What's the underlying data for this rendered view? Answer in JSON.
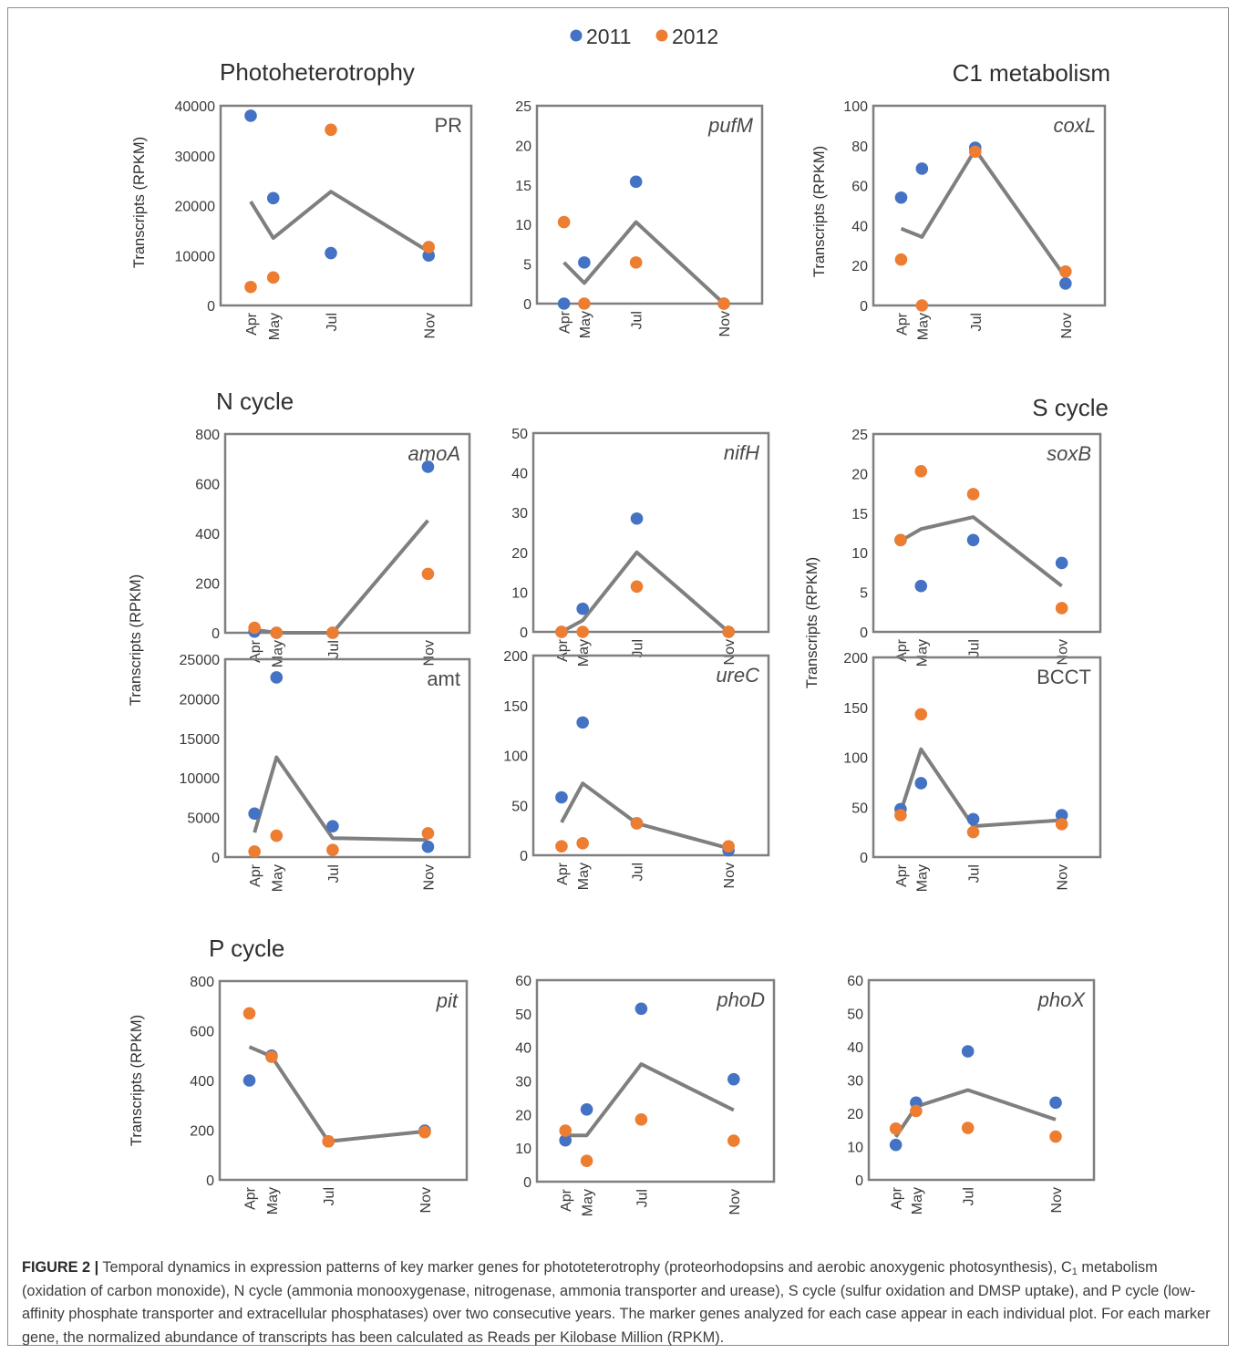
{
  "colors": {
    "y2011": "#4472C4",
    "y2012": "#ED7D31",
    "mean_line": "#7f7f7f"
  },
  "legend": [
    {
      "label": "2011",
      "color": "#4472C4"
    },
    {
      "label": "2012",
      "color": "#ED7D31"
    }
  ],
  "group_titles": [
    {
      "id": "photo",
      "text": "Photoheterotrophy"
    },
    {
      "id": "c1",
      "text": "C1 metabolism"
    },
    {
      "id": "n",
      "text": "N cycle"
    },
    {
      "id": "s",
      "text": "S cycle"
    },
    {
      "id": "p",
      "text": "P cycle"
    }
  ],
  "y_axis_label": "Transcripts (RPKM)",
  "caption": {
    "label": "FIGURE 2 |",
    "text_before_sub": " Temporal dynamics in expression patterns of key marker genes for phototeterotrophy (proteorhodopsins and aerobic anoxygenic photosynthesis), C",
    "sub": "1",
    "text_after_sub": " metabolism (oxidation of carbon monoxide), N cycle (ammonia monooxygenase, nitrogenase, ammonia transporter and urease), S cycle (sulfur oxidation and DMSP uptake), and P cycle (low-affinity phosphate transporter and extracellular phosphatases) over two consecutive years. The marker genes analyzed for each case appear in each individual plot. For each marker gene, the normalized abundance of transcripts has been calculated as Reads per Kilobase Million (RPKM)."
  },
  "chart_data": [
    {
      "type": "scatter",
      "gene": "PR",
      "italic": false,
      "months": [
        "Apr",
        "May",
        "Jul",
        "Nov"
      ],
      "ylim": [
        0,
        40000
      ],
      "yticks": [
        0,
        10000,
        20000,
        30000,
        40000
      ],
      "series": [
        {
          "name": "2011",
          "values": [
            38000,
            21500,
            10500,
            10000
          ]
        },
        {
          "name": "2012",
          "values": [
            3700,
            5600,
            35200,
            11700
          ]
        }
      ],
      "mean_line": [
        20800,
        13500,
        22800,
        10800
      ]
    },
    {
      "type": "scatter",
      "gene": "pufM",
      "italic": true,
      "months": [
        "Apr",
        "May",
        "Jul",
        "Nov"
      ],
      "ylim": [
        0,
        25
      ],
      "yticks": [
        0,
        5,
        10,
        15,
        20,
        25
      ],
      "series": [
        {
          "name": "2011",
          "values": [
            0,
            5.2,
            15.4,
            0
          ]
        },
        {
          "name": "2012",
          "values": [
            10.3,
            0,
            5.2,
            0
          ]
        }
      ],
      "mean_line": [
        5.2,
        2.6,
        10.3,
        0
      ]
    },
    {
      "type": "scatter",
      "gene": "coxL",
      "italic": true,
      "months": [
        "Apr",
        "May",
        "Jul",
        "Nov"
      ],
      "ylim": [
        0,
        100
      ],
      "yticks": [
        0,
        20,
        40,
        60,
        80,
        100
      ],
      "series": [
        {
          "name": "2011",
          "values": [
            54,
            68.5,
            79,
            11
          ]
        },
        {
          "name": "2012",
          "values": [
            23,
            0,
            77,
            17
          ]
        }
      ],
      "mean_line": [
        38.5,
        34.3,
        78,
        14
      ]
    },
    {
      "type": "scatter",
      "gene": "amoA",
      "italic": true,
      "months": [
        "Apr",
        "May",
        "Jul",
        "Nov"
      ],
      "ylim": [
        0,
        800
      ],
      "yticks": [
        0,
        200,
        400,
        600,
        800
      ],
      "series": [
        {
          "name": "2011",
          "values": [
            5,
            0,
            0,
            668
          ]
        },
        {
          "name": "2012",
          "values": [
            20,
            0,
            0,
            237
          ]
        }
      ],
      "mean_line": [
        12,
        0,
        0,
        452
      ]
    },
    {
      "type": "scatter",
      "gene": "nifH",
      "italic": true,
      "months": [
        "Apr",
        "May",
        "Jul",
        "Nov"
      ],
      "ylim": [
        0,
        50
      ],
      "yticks": [
        0,
        10,
        20,
        30,
        40,
        50
      ],
      "series": [
        {
          "name": "2011",
          "values": [
            0,
            5.8,
            28.5,
            0
          ]
        },
        {
          "name": "2012",
          "values": [
            0,
            0,
            11.4,
            0
          ]
        }
      ],
      "mean_line": [
        0,
        2.9,
        20,
        0
      ]
    },
    {
      "type": "scatter",
      "gene": "soxB",
      "italic": true,
      "months": [
        "Apr",
        "May",
        "Jul",
        "Nov"
      ],
      "ylim": [
        0,
        25
      ],
      "yticks": [
        0,
        5,
        10,
        15,
        20,
        25
      ],
      "series": [
        {
          "name": "2011",
          "values": [
            11.6,
            5.8,
            11.6,
            8.7
          ]
        },
        {
          "name": "2012",
          "values": [
            11.6,
            20.3,
            17.4,
            3
          ]
        }
      ],
      "mean_line": [
        11.5,
        13,
        14.5,
        5.8
      ]
    },
    {
      "type": "scatter",
      "gene": "amt",
      "italic": false,
      "months": [
        "Apr",
        "May",
        "Jul",
        "Nov"
      ],
      "ylim": [
        0,
        25000
      ],
      "yticks": [
        0,
        5000,
        10000,
        15000,
        20000,
        25000
      ],
      "series": [
        {
          "name": "2011",
          "values": [
            5500,
            22700,
            3900,
            1300
          ]
        },
        {
          "name": "2012",
          "values": [
            700,
            2700,
            900,
            3000
          ]
        }
      ],
      "mean_line": [
        3100,
        12600,
        2400,
        2150
      ]
    },
    {
      "type": "scatter",
      "gene": "ureC",
      "italic": true,
      "months": [
        "Apr",
        "May",
        "Jul",
        "Nov"
      ],
      "ylim": [
        0,
        200
      ],
      "yticks": [
        0,
        50,
        100,
        150,
        200
      ],
      "series": [
        {
          "name": "2011",
          "values": [
            58,
            133,
            32,
            5
          ]
        },
        {
          "name": "2012",
          "values": [
            9,
            12,
            32,
            9
          ]
        }
      ],
      "mean_line": [
        33,
        72,
        32,
        7
      ]
    },
    {
      "type": "scatter",
      "gene": "BCCT",
      "italic": false,
      "months": [
        "Apr",
        "May",
        "Jul",
        "Nov"
      ],
      "ylim": [
        0,
        200
      ],
      "yticks": [
        0,
        50,
        100,
        150,
        200
      ],
      "series": [
        {
          "name": "2011",
          "values": [
            48,
            74,
            38,
            42
          ]
        },
        {
          "name": "2012",
          "values": [
            42,
            143,
            25,
            33
          ]
        }
      ],
      "mean_line": [
        45,
        108,
        31,
        37
      ]
    },
    {
      "type": "scatter",
      "gene": "pit",
      "italic": true,
      "months": [
        "Apr",
        "May",
        "Jul",
        "Nov"
      ],
      "ylim": [
        0,
        800
      ],
      "yticks": [
        0,
        200,
        400,
        600,
        800
      ],
      "series": [
        {
          "name": "2011",
          "values": [
            400,
            500,
            155,
            198
          ]
        },
        {
          "name": "2012",
          "values": [
            670,
            495,
            155,
            192
          ]
        }
      ],
      "mean_line": [
        535,
        497,
        155,
        195
      ]
    },
    {
      "type": "scatter",
      "gene": "phoD",
      "italic": true,
      "months": [
        "Apr",
        "May",
        "Jul",
        "Nov"
      ],
      "ylim": [
        0,
        60
      ],
      "yticks": [
        0,
        10,
        20,
        30,
        40,
        50,
        60
      ],
      "series": [
        {
          "name": "2011",
          "values": [
            12.3,
            21.5,
            51.5,
            30.5
          ]
        },
        {
          "name": "2012",
          "values": [
            15.2,
            6.2,
            18.5,
            12.2
          ]
        }
      ],
      "mean_line": [
        13.8,
        13.8,
        35,
        21.3
      ]
    },
    {
      "type": "scatter",
      "gene": "phoX",
      "italic": true,
      "months": [
        "Apr",
        "May",
        "Jul",
        "Nov"
      ],
      "ylim": [
        0,
        60
      ],
      "yticks": [
        0,
        10,
        20,
        30,
        40,
        50,
        60
      ],
      "series": [
        {
          "name": "2011",
          "values": [
            10.5,
            23.2,
            38.6,
            23.2
          ]
        },
        {
          "name": "2012",
          "values": [
            15.4,
            20.7,
            15.6,
            13
          ]
        }
      ],
      "mean_line": [
        12.9,
        22,
        27,
        18.1
      ]
    }
  ]
}
